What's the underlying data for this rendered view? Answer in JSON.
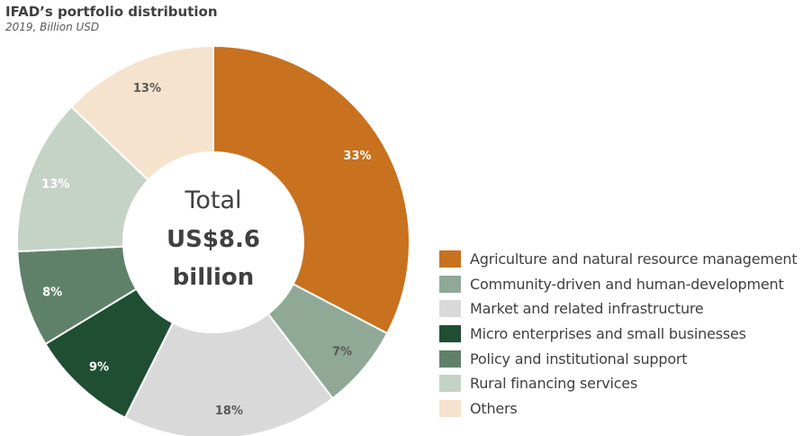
{
  "header": {
    "title": "IFAD’s portfolio distribution",
    "subtitle": "2019, Billion USD"
  },
  "center": {
    "line1": "Total",
    "line2": "US$8.6",
    "line3": "billion"
  },
  "chart_data": {
    "type": "pie",
    "donut": true,
    "title": "IFAD’s portfolio distribution",
    "subtitle": "2019, Billion USD",
    "legend_position": "right-bottom",
    "series": [
      {
        "name": "Agriculture and natural resource management",
        "value": 33,
        "label": "33%",
        "color": "#C8711E"
      },
      {
        "name": "Community-driven and human-development",
        "value": 7,
        "label": "7%",
        "color": "#8FA996"
      },
      {
        "name": "Market and related infrastructure",
        "value": 18,
        "label": "18%",
        "color": "#D9D9D9"
      },
      {
        "name": "Micro enterprises and small businesses",
        "value": 9,
        "label": "9%",
        "color": "#1F4E33"
      },
      {
        "name": "Policy and institutional support",
        "value": 8,
        "label": "8%",
        "color": "#5F816A"
      },
      {
        "name": "Rural financing services",
        "value": 13,
        "label": "13%",
        "color": "#C5D3C7"
      },
      {
        "name": "Others",
        "value": 13,
        "label": "13%",
        "color": "#F5E3CE"
      }
    ]
  }
}
